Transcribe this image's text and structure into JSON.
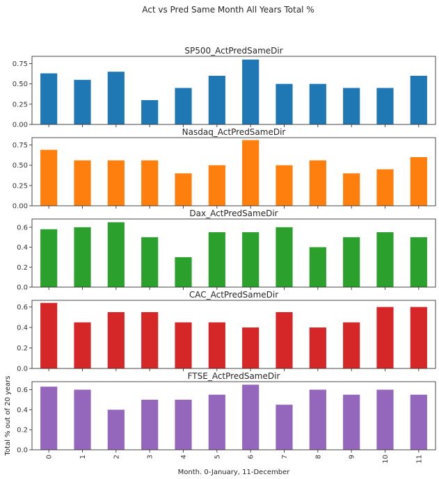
{
  "chart_data": {
    "type": "bar",
    "title": "Act vs Pred Same Month All Years Total %",
    "xlabel": "Month. 0-January, 11-December",
    "ylabel": "Total % out of 20 years",
    "categories": [
      "0",
      "1",
      "2",
      "3",
      "4",
      "5",
      "6",
      "7",
      "8",
      "9",
      "10",
      "11"
    ],
    "layout": "5 stacked subplots, shared x-axis",
    "grid": false,
    "legend": "none",
    "subplots": [
      {
        "title": "SP500_ActPredSameDir",
        "color": "#1f77b4",
        "ylim": [
          0,
          0.84
        ],
        "yticks": [
          "0.00",
          "0.25",
          "0.50",
          "0.75"
        ],
        "ytick_values": [
          0,
          0.25,
          0.5,
          0.75
        ],
        "values": [
          0.63,
          0.55,
          0.65,
          0.3,
          0.45,
          0.6,
          0.8,
          0.5,
          0.5,
          0.45,
          0.45,
          0.6
        ]
      },
      {
        "title": "Nasdaq_ActPredSameDir",
        "color": "#ff7f0e",
        "ylim": [
          0,
          0.84
        ],
        "yticks": [
          "0.00",
          "0.25",
          "0.50",
          "0.75"
        ],
        "ytick_values": [
          0,
          0.25,
          0.5,
          0.75
        ],
        "values": [
          0.69,
          0.56,
          0.56,
          0.56,
          0.4,
          0.5,
          0.81,
          0.5,
          0.56,
          0.4,
          0.45,
          0.6
        ]
      },
      {
        "title": "Dax_ActPredSameDir",
        "color": "#2ca02c",
        "ylim": [
          0,
          0.6825
        ],
        "yticks": [
          "0.0",
          "0.2",
          "0.4",
          "0.6"
        ],
        "ytick_values": [
          0,
          0.2,
          0.4,
          0.6
        ],
        "values": [
          0.58,
          0.6,
          0.65,
          0.5,
          0.3,
          0.55,
          0.55,
          0.6,
          0.4,
          0.5,
          0.55,
          0.5
        ]
      },
      {
        "title": "CAC_ActPredSameDir",
        "color": "#d62728",
        "ylim": [
          0,
          0.665
        ],
        "yticks": [
          "0.0",
          "0.2",
          "0.4",
          "0.6"
        ],
        "ytick_values": [
          0,
          0.2,
          0.4,
          0.6
        ],
        "values": [
          0.64,
          0.45,
          0.55,
          0.55,
          0.45,
          0.45,
          0.4,
          0.55,
          0.4,
          0.45,
          0.6,
          0.6
        ]
      },
      {
        "title": "FTSE_ActPredSameDir",
        "color": "#9467bd",
        "ylim": [
          0,
          0.68
        ],
        "yticks": [
          "0.0",
          "0.2",
          "0.4",
          "0.6"
        ],
        "ytick_values": [
          0,
          0.2,
          0.4,
          0.6
        ],
        "values": [
          0.63,
          0.6,
          0.4,
          0.5,
          0.5,
          0.55,
          0.65,
          0.45,
          0.6,
          0.55,
          0.6,
          0.55
        ]
      }
    ]
  }
}
